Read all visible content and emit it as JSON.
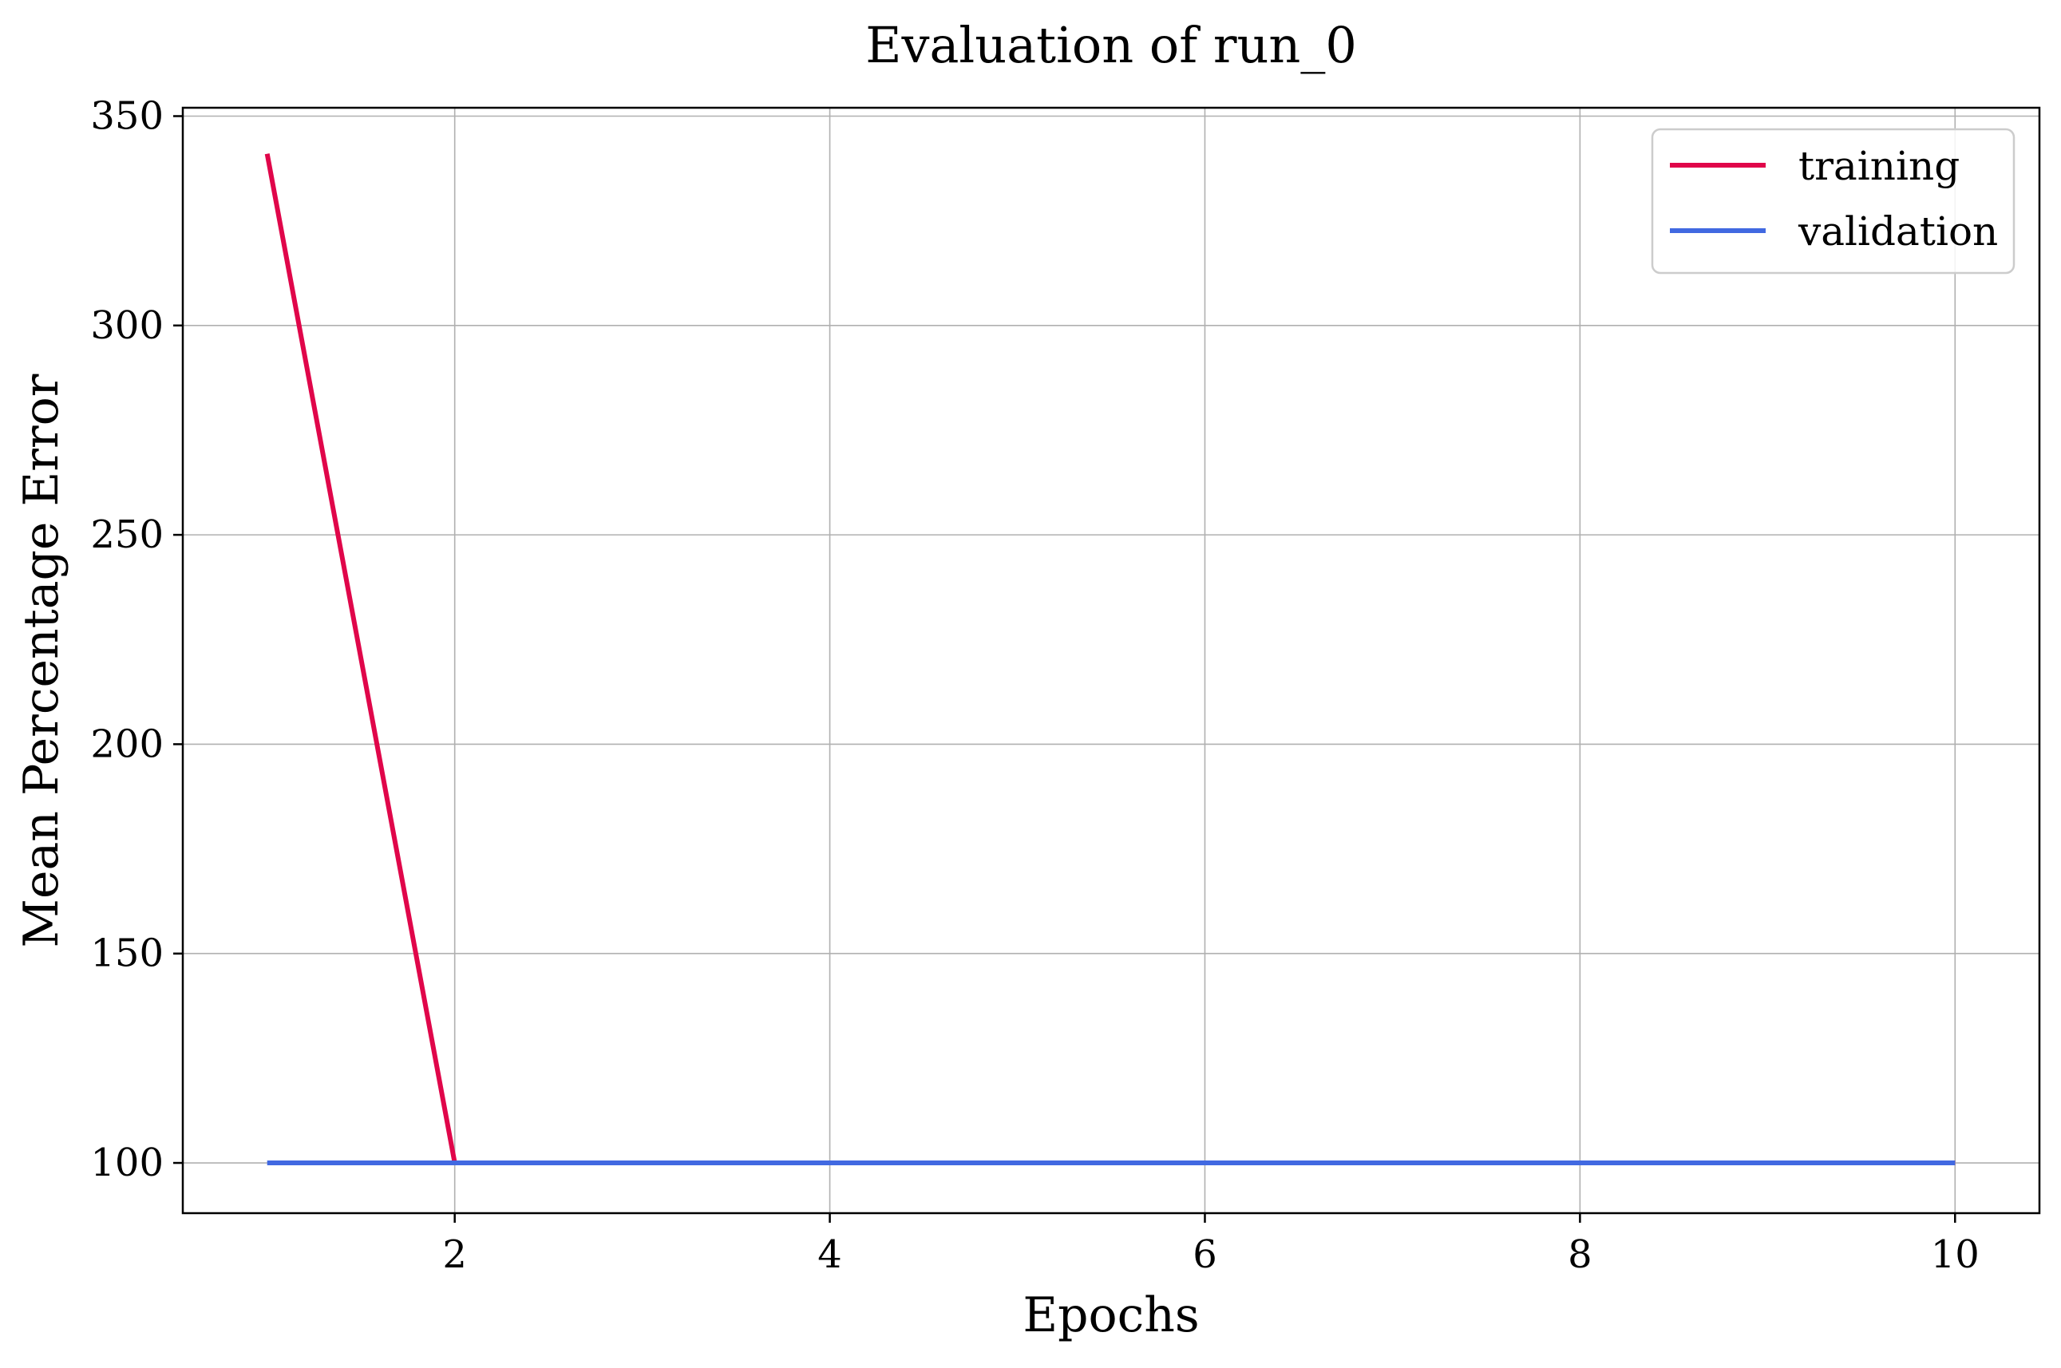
{
  "chart_data": {
    "type": "line",
    "title": "Evaluation of run_0",
    "xlabel": "Epochs",
    "ylabel": "Mean Percentage Error",
    "x": [
      1,
      2,
      3,
      4,
      5,
      6,
      7,
      8,
      9,
      10
    ],
    "xlim": [
      0.55,
      10.45
    ],
    "ylim": [
      88,
      352
    ],
    "xticks": [
      2,
      4,
      6,
      8,
      10
    ],
    "yticks": [
      100,
      150,
      200,
      250,
      300,
      350
    ],
    "grid": true,
    "legend_position": "top-right",
    "series": [
      {
        "name": "training",
        "color": "#e0064a",
        "values": [
          341,
          100,
          100,
          100,
          100,
          100,
          100,
          100,
          100,
          100
        ]
      },
      {
        "name": "validation",
        "color": "#4169e1",
        "values": [
          100,
          100,
          100,
          100,
          100,
          100,
          100,
          100,
          100,
          100
        ]
      }
    ]
  }
}
